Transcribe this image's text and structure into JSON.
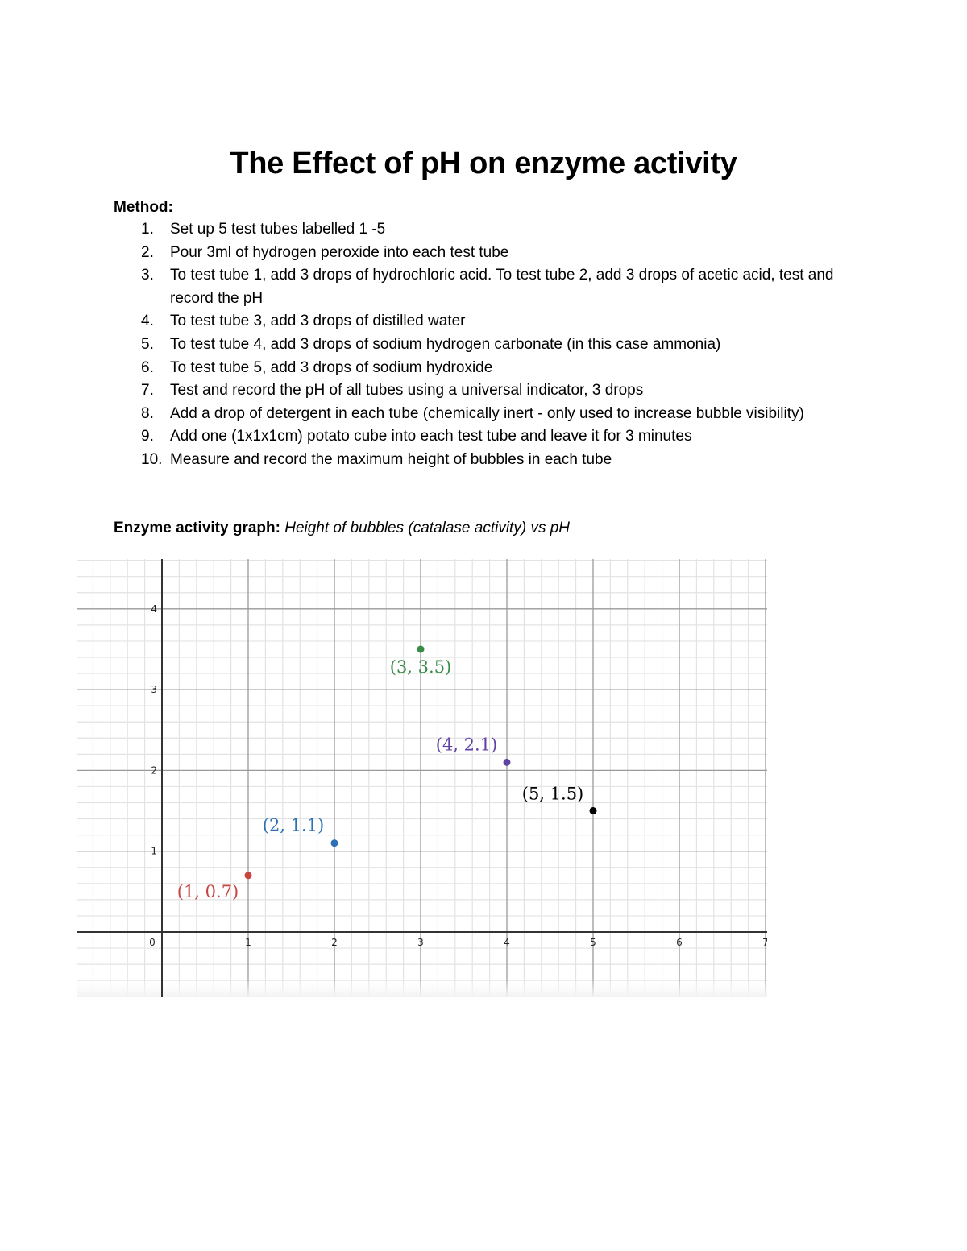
{
  "document": {
    "title": "The Effect of pH on enzyme activity",
    "method_label": "Method:",
    "steps": [
      {
        "num": "1.",
        "text": "Set up 5 test tubes labelled 1 -5"
      },
      {
        "num": "2.",
        "text": "Pour 3ml of hydrogen peroxide into each test tube"
      },
      {
        "num": "3.",
        "text": "To test tube 1, add 3 drops of hydrochloric acid. To test tube 2, add 3 drops of acetic acid, test and record the pH"
      },
      {
        "num": "4.",
        "text": "To test tube 3, add 3 drops of distilled water"
      },
      {
        "num": "5.",
        "text": "To test tube 4, add 3 drops of sodium hydrogen carbonate (in this case ammonia)"
      },
      {
        "num": "6.",
        "text": "To test tube 5, add 3 drops of sodium hydroxide"
      },
      {
        "num": "7.",
        "text": "Test and record the pH of all tubes using a universal indicator, 3 drops"
      },
      {
        "num": "8.",
        "text": "Add a drop of detergent in each tube (chemically inert - only used to increase bubble visibility)"
      },
      {
        "num": "9.",
        "text": "Add one (1x1x1cm) potato cube into each test tube and leave it for 3 minutes"
      },
      {
        "num": "10.",
        "text": "Measure and record the maximum height of bubbles in each tube"
      }
    ],
    "graph_heading_bold": "Enzyme activity graph:",
    "graph_heading_italic": "Height of bubbles (catalase activity) vs pH"
  },
  "chart_data": {
    "type": "scatter",
    "title": "Height of bubbles (catalase activity) vs pH",
    "xlabel": "",
    "ylabel": "",
    "xlim": [
      -1,
      7
    ],
    "ylim": [
      -0.8,
      4.6
    ],
    "grid": true,
    "x_ticks": [
      "0",
      "1",
      "2",
      "3",
      "4",
      "5",
      "6",
      "7"
    ],
    "y_ticks": [
      "1",
      "2",
      "3",
      "4"
    ],
    "points": [
      {
        "x": 1,
        "y": 0.7,
        "label": "(1, 0.7)",
        "color": "#c74440"
      },
      {
        "x": 2,
        "y": 1.1,
        "label": "(2, 1.1)",
        "color": "#2d70b3"
      },
      {
        "x": 3,
        "y": 3.5,
        "label": "(3, 3.5)",
        "color": "#388c46"
      },
      {
        "x": 4,
        "y": 2.1,
        "label": "(4, 2.1)",
        "color": "#6042a6"
      },
      {
        "x": 5,
        "y": 1.5,
        "label": "(5, 1.5)",
        "color": "#000000"
      }
    ]
  }
}
